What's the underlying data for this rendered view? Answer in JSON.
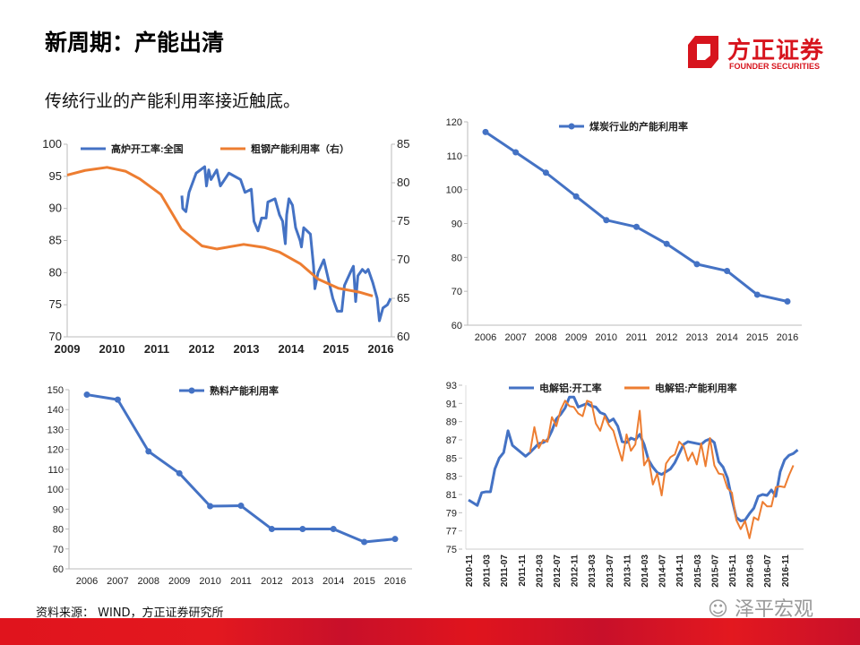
{
  "header": {
    "title": "新周期：产能出清",
    "subtitle": "传统行业的产能利用率接近触底。"
  },
  "logo": {
    "cn": "方正证券",
    "en": "FOUNDER SECURITIES"
  },
  "footer": {
    "source": "资料来源： WIND，方正证券研究所",
    "watermark": "泽平宏观"
  },
  "colors": {
    "blue": "#4472c4",
    "orange": "#ed7d31",
    "brand": "#d7141d"
  },
  "chart_data": [
    {
      "type": "line",
      "title": "",
      "ylim": [
        70,
        100
      ],
      "yticks": [
        "70",
        "75",
        "80",
        "85",
        "90",
        "95",
        "100"
      ],
      "y2lim": [
        60,
        85
      ],
      "y2ticks": [
        "60",
        "65",
        "70",
        "75",
        "80",
        "85"
      ],
      "xlim": [
        2009,
        2016.3
      ],
      "xticks": [
        "2009",
        "2010",
        "2011",
        "2012",
        "2013",
        "2014",
        "2015",
        "2016"
      ],
      "series": [
        {
          "name": "高炉开工率:全国",
          "axis": "left",
          "color": "#4472c4",
          "points": [
            [
              2011.56,
              92
            ],
            [
              2011.58,
              90
            ],
            [
              2011.65,
              89.5
            ],
            [
              2011.72,
              92.5
            ],
            [
              2011.88,
              95.5
            ],
            [
              2012.07,
              96.5
            ],
            [
              2012.11,
              93.5
            ],
            [
              2012.16,
              96
            ],
            [
              2012.21,
              94.5
            ],
            [
              2012.34,
              96
            ],
            [
              2012.42,
              93.5
            ],
            [
              2012.61,
              95.5
            ],
            [
              2012.87,
              94.5
            ],
            [
              2012.97,
              92.5
            ],
            [
              2013.11,
              93
            ],
            [
              2013.17,
              88
            ],
            [
              2013.26,
              86.5
            ],
            [
              2013.34,
              88.5
            ],
            [
              2013.44,
              88.5
            ],
            [
              2013.48,
              91
            ],
            [
              2013.64,
              91.5
            ],
            [
              2013.74,
              89
            ],
            [
              2013.81,
              88
            ],
            [
              2013.87,
              84.5
            ],
            [
              2013.9,
              89
            ],
            [
              2013.95,
              91.5
            ],
            [
              2014.03,
              90.5
            ],
            [
              2014.1,
              87
            ],
            [
              2014.2,
              85
            ],
            [
              2014.23,
              84
            ],
            [
              2014.28,
              87
            ],
            [
              2014.43,
              86
            ],
            [
              2014.5,
              81
            ],
            [
              2014.53,
              77.5
            ],
            [
              2014.6,
              80
            ],
            [
              2014.73,
              82
            ],
            [
              2014.83,
              79
            ],
            [
              2014.93,
              76
            ],
            [
              2015.03,
              74
            ],
            [
              2015.13,
              74
            ],
            [
              2015.19,
              78
            ],
            [
              2015.32,
              80
            ],
            [
              2015.39,
              81
            ],
            [
              2015.44,
              75.5
            ],
            [
              2015.49,
              79.5
            ],
            [
              2015.59,
              80.5
            ],
            [
              2015.66,
              80
            ],
            [
              2015.72,
              80.5
            ],
            [
              2015.82,
              78.5
            ],
            [
              2015.92,
              76
            ],
            [
              2015.97,
              72.5
            ],
            [
              2016.05,
              74.5
            ],
            [
              2016.15,
              75
            ],
            [
              2016.22,
              76
            ]
          ]
        },
        {
          "name": "粗钢产能利用率（右）",
          "axis": "right",
          "color": "#ed7d31",
          "points": [
            [
              2009,
              81
            ],
            [
              2009.4,
              81.6
            ],
            [
              2009.89,
              82
            ],
            [
              2010.3,
              81.5
            ],
            [
              2010.62,
              80.5
            ],
            [
              2011.09,
              78.5
            ],
            [
              2011.55,
              74
            ],
            [
              2012.01,
              71.8
            ],
            [
              2012.34,
              71.4
            ],
            [
              2012.94,
              72
            ],
            [
              2013.4,
              71.6
            ],
            [
              2013.74,
              71
            ],
            [
              2014.2,
              69.5
            ],
            [
              2014.6,
              67.5
            ],
            [
              2015.06,
              66.3
            ],
            [
              2015.52,
              65.8
            ],
            [
              2015.82,
              65.3
            ]
          ]
        }
      ]
    },
    {
      "type": "line",
      "title": "",
      "ylim": [
        60,
        120
      ],
      "yticks": [
        "60",
        "70",
        "80",
        "90",
        "100",
        "110",
        "120"
      ],
      "categories": [
        "2006",
        "2007",
        "2008",
        "2009",
        "2010",
        "2011",
        "2012",
        "2013",
        "2014",
        "2015",
        "2016"
      ],
      "series": [
        {
          "name": "煤炭行业的产能利用率",
          "color": "#4472c4",
          "values": [
            117,
            111,
            105,
            98,
            91,
            89,
            84,
            78,
            76,
            69,
            67
          ]
        }
      ]
    },
    {
      "type": "line",
      "title": "",
      "ylim": [
        60,
        150
      ],
      "yticks": [
        "60",
        "70",
        "80",
        "90",
        "100",
        "110",
        "120",
        "130",
        "140",
        "150"
      ],
      "categories": [
        "2006",
        "2007",
        "2008",
        "2009",
        "2010",
        "2011",
        "2012",
        "2013",
        "2014",
        "2015",
        "2016"
      ],
      "series": [
        {
          "name": "熟料产能利用率",
          "color": "#4472c4",
          "values": [
            147.5,
            145,
            119,
            108,
            91.5,
            91.7,
            80,
            80,
            80,
            73.5,
            75
          ]
        }
      ]
    },
    {
      "type": "line",
      "title": "",
      "ylim": [
        75,
        93
      ],
      "yticks": [
        "75",
        "77",
        "79",
        "81",
        "83",
        "85",
        "87",
        "89",
        "91",
        "93"
      ],
      "xticks": [
        "2010-11",
        "2011-03",
        "2011-07",
        "2011-11",
        "2012-03",
        "2012-07",
        "2012-11",
        "2013-03",
        "2013-07",
        "2013-11",
        "2014-03",
        "2014-07",
        "2014-11",
        "2015-03",
        "2015-07",
        "2015-11",
        "2016-03",
        "2016-07",
        "2016-11"
      ],
      "series": [
        {
          "name": "电解铝:开工率",
          "color": "#4472c4",
          "start": 0,
          "values": [
            80.4,
            80.1,
            79.8,
            81.2,
            81.3,
            81.3,
            83.8,
            85,
            85.6,
            88,
            86.4,
            86,
            85.6,
            85.2,
            85.6,
            86.1,
            86.6,
            86.7,
            87,
            88,
            89.3,
            89.8,
            90.5,
            91.7,
            91.7,
            90.6,
            90.8,
            91,
            90.7,
            90.6,
            90,
            89.8,
            89,
            89.3,
            88.5,
            86.8,
            86.7,
            87.2,
            87,
            87.6,
            86.5,
            84.8,
            84,
            83.4,
            83.2,
            83.5,
            83.8,
            84.5,
            85.5,
            86.5,
            86.8,
            86.7,
            86.6,
            86.5,
            86.9,
            87.1,
            86.7,
            84.6,
            84,
            82.8,
            80.5,
            78.5,
            78.1,
            78.2,
            78.9,
            79.5,
            80.8,
            81,
            80.9,
            81.5,
            80.8,
            83.5,
            84.8,
            85.3,
            85.5,
            85.9
          ]
        },
        {
          "name": "电解铝:产能利用率",
          "color": "#ed7d31",
          "start": 14,
          "values": [
            85.6,
            88.4,
            86.1,
            87,
            86.8,
            89.5,
            88.5,
            90.3,
            91.3,
            90.7,
            90.6,
            89.9,
            89.6,
            91.3,
            91.1,
            88.8,
            88,
            89.6,
            88.6,
            88,
            86.3,
            84.7,
            87.6,
            85.8,
            86.5,
            90.2,
            84.2,
            85,
            82.1,
            83.3,
            80.9,
            84.4,
            85.1,
            85.4,
            86.8,
            86.3,
            84.7,
            85.6,
            84.3,
            86.6,
            84.1,
            87.2,
            84.2,
            83.3,
            83.2,
            81.7,
            81.2,
            78.2,
            77.2,
            78.1,
            76.2,
            78.5,
            78.2,
            80.2,
            79.7,
            79.7,
            81.8,
            81.9,
            81.8,
            83.1,
            84.2
          ]
        }
      ]
    }
  ]
}
